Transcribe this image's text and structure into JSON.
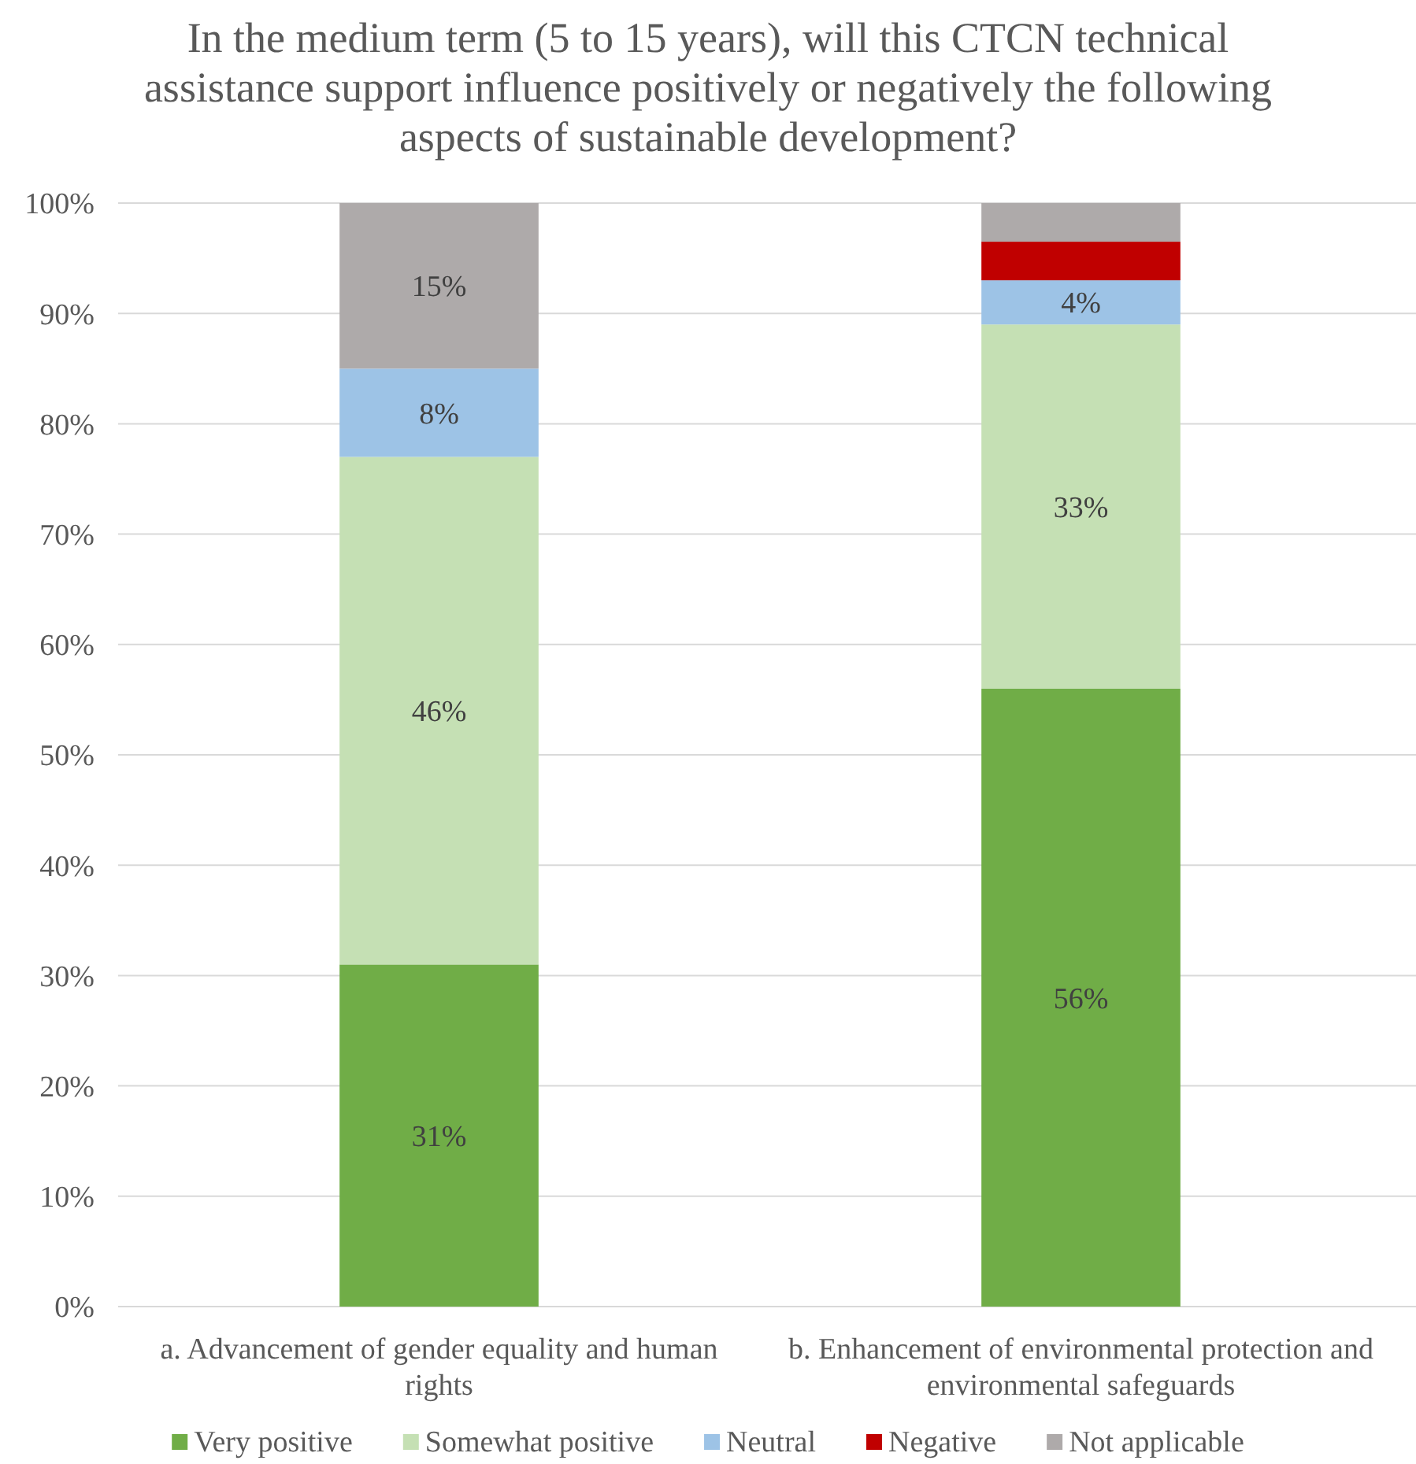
{
  "chart_data": {
    "type": "bar",
    "stacked": true,
    "title": "In the medium term (5 to 15 years), will this CTCN technical assistance support influence positively or negatively the following aspects of sustainable development?",
    "categories": [
      "a. Advancement of gender equality and human rights",
      "b. Enhancement of environmental protection and environmental safeguards"
    ],
    "series": [
      {
        "name": "Very positive",
        "color": "#70ad47",
        "values": [
          31,
          56
        ],
        "value_labels": [
          "31%",
          "56%"
        ]
      },
      {
        "name": "Somewhat positive",
        "color": "#c5e0b4",
        "values": [
          46,
          33
        ],
        "value_labels": [
          "46%",
          "33%"
        ]
      },
      {
        "name": "Neutral",
        "color": "#9dc3e6",
        "values": [
          8,
          4
        ],
        "value_labels": [
          "8%",
          "4%"
        ]
      },
      {
        "name": "Negative",
        "color": "#c00000",
        "values": [
          0,
          3.5
        ],
        "value_labels": [
          null,
          null
        ]
      },
      {
        "name": "Not applicable",
        "color": "#aeaaaa",
        "values": [
          15,
          3.5
        ],
        "value_labels": [
          "15%",
          null
        ]
      }
    ],
    "ylim": [
      0,
      100
    ],
    "yticks": [
      {
        "value": 0,
        "label": "0%"
      },
      {
        "value": 10,
        "label": "10%"
      },
      {
        "value": 20,
        "label": "20%"
      },
      {
        "value": 30,
        "label": "30%"
      },
      {
        "value": 40,
        "label": "40%"
      },
      {
        "value": 50,
        "label": "50%"
      },
      {
        "value": 60,
        "label": "60%"
      },
      {
        "value": 70,
        "label": "70%"
      },
      {
        "value": 80,
        "label": "80%"
      },
      {
        "value": 90,
        "label": "90%"
      },
      {
        "value": 100,
        "label": "100%"
      }
    ],
    "grid": "y",
    "legend": "bottom"
  }
}
